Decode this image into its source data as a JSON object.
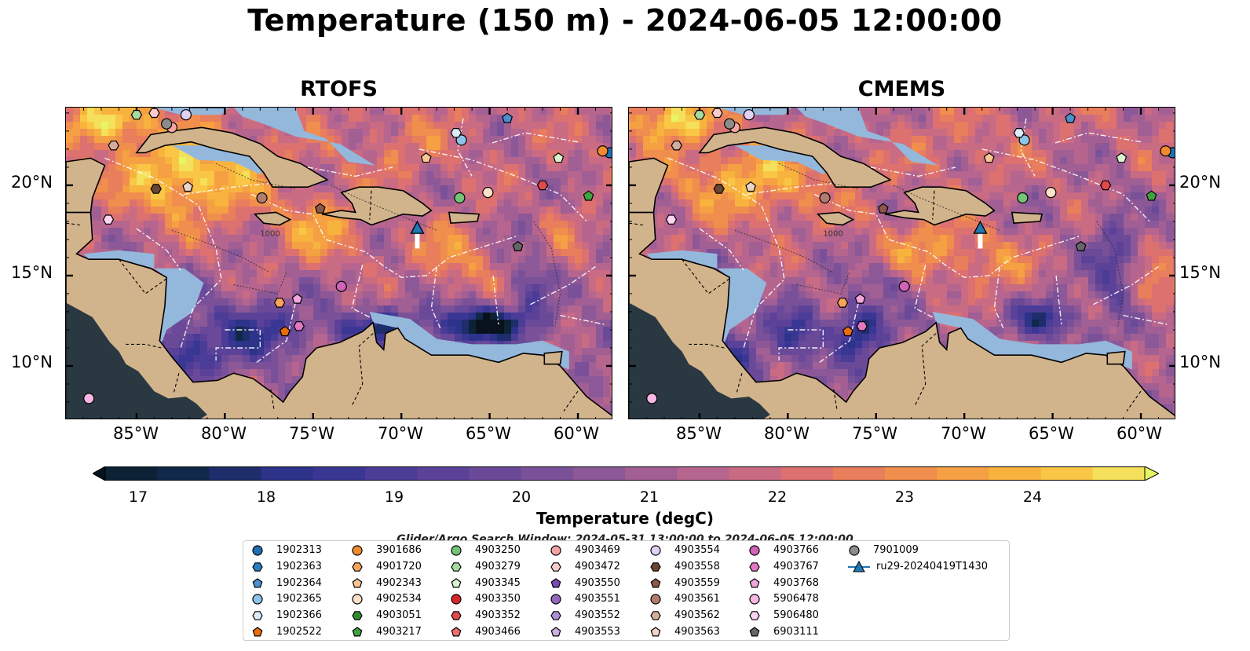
{
  "title": "Temperature (150 m) - 2024-06-05 12:00:00",
  "panels": [
    {
      "title": "RTOFS"
    },
    {
      "title": "CMEMS"
    }
  ],
  "axes": {
    "lon_ticks": [
      "85°W",
      "80°W",
      "75°W",
      "70°W",
      "65°W",
      "60°W"
    ],
    "lat_ticks": [
      "20°N",
      "15°N",
      "10°N"
    ],
    "lon_range": [
      -89.0,
      -58.0
    ],
    "lat_range": [
      7.0,
      24.3
    ]
  },
  "colorbar": {
    "title": "Temperature (degC)",
    "range": [
      16.5,
      24.5
    ],
    "ticks": [
      "17",
      "18",
      "19",
      "20",
      "21",
      "22",
      "23",
      "24"
    ],
    "colors": [
      "#0d2235",
      "#10284a",
      "#1e2d6b",
      "#2c3389",
      "#3a3794",
      "#4a3c97",
      "#5b4298",
      "#6a4999",
      "#7a5199",
      "#8c5897",
      "#a15f94",
      "#b6658e",
      "#c96b83",
      "#dc7170",
      "#e87e5b",
      "#f08e4d",
      "#f5a043",
      "#f8b33e",
      "#f9c745",
      "#f4e05a"
    ],
    "extend_min_color": "#07121d",
    "extend_max_color": "#e7f65f"
  },
  "search_window": "Glider/Argo Search Window: 2024-05-31 13:00:00 to 2024-06-05 12:00:00",
  "legend": {
    "entries": [
      {
        "label": "1902313",
        "marker": "circle",
        "color": "#1f6fb4"
      },
      {
        "label": "1902363",
        "marker": "hexagon",
        "color": "#2b7ec0"
      },
      {
        "label": "1902364",
        "marker": "pentagon",
        "color": "#4a90cf"
      },
      {
        "label": "1902365",
        "marker": "circle",
        "color": "#8ec3ea"
      },
      {
        "label": "1902366",
        "marker": "hexagon",
        "color": "#dcebf8"
      },
      {
        "label": "1902522",
        "marker": "pentagon",
        "color": "#e86d0c"
      },
      {
        "label": "3901686",
        "marker": "circle",
        "color": "#f28b2d"
      },
      {
        "label": "4901720",
        "marker": "hexagon",
        "color": "#f7a45c"
      },
      {
        "label": "4902343",
        "marker": "pentagon",
        "color": "#fbc697"
      },
      {
        "label": "4902534",
        "marker": "circle",
        "color": "#fde0c9"
      },
      {
        "label": "4903051",
        "marker": "hexagon",
        "color": "#2e8b2e"
      },
      {
        "label": "4903217",
        "marker": "pentagon",
        "color": "#3fa23f"
      },
      {
        "label": "4903250",
        "marker": "circle",
        "color": "#74c476"
      },
      {
        "label": "4903279",
        "marker": "hexagon",
        "color": "#a6dba0"
      },
      {
        "label": "4903345",
        "marker": "pentagon",
        "color": "#d9f2d0"
      },
      {
        "label": "4903350",
        "marker": "circle",
        "color": "#d62728"
      },
      {
        "label": "4903352",
        "marker": "hexagon",
        "color": "#e04a4a"
      },
      {
        "label": "4903466",
        "marker": "pentagon",
        "color": "#ee6e6e"
      },
      {
        "label": "4903469",
        "marker": "circle",
        "color": "#f4a3a3"
      },
      {
        "label": "4903472",
        "marker": "hexagon",
        "color": "#f9cccc"
      },
      {
        "label": "4903550",
        "marker": "pentagon",
        "color": "#7b4bb3"
      },
      {
        "label": "4903551",
        "marker": "circle",
        "color": "#9467bd"
      },
      {
        "label": "4903552",
        "marker": "hexagon",
        "color": "#b08fd6"
      },
      {
        "label": "4903553",
        "marker": "pentagon",
        "color": "#c8b0e6"
      },
      {
        "label": "4903554",
        "marker": "circle",
        "color": "#e0d0f2"
      },
      {
        "label": "4903558",
        "marker": "hexagon",
        "color": "#6b4532"
      },
      {
        "label": "4903559",
        "marker": "pentagon",
        "color": "#8c564b"
      },
      {
        "label": "4903561",
        "marker": "circle",
        "color": "#b07c70"
      },
      {
        "label": "4903562",
        "marker": "hexagon",
        "color": "#d4ad9f"
      },
      {
        "label": "4903563",
        "marker": "pentagon",
        "color": "#ecd4c9"
      },
      {
        "label": "4903766",
        "marker": "circle",
        "color": "#d062b8"
      },
      {
        "label": "4903767",
        "marker": "hexagon",
        "color": "#e377c2"
      },
      {
        "label": "4903768",
        "marker": "pentagon",
        "color": "#f2a6de"
      },
      {
        "label": "5906478",
        "marker": "circle",
        "color": "#f7b6e4"
      },
      {
        "label": "5906480",
        "marker": "hexagon",
        "color": "#fbd6f1"
      },
      {
        "label": "6903111",
        "marker": "pentagon",
        "color": "#666666"
      },
      {
        "label": "7901009",
        "marker": "circle",
        "color": "#8c8c8c"
      },
      {
        "label": "ru29-20240419T1430",
        "marker": "triangle-line",
        "color": "#1f77b4"
      }
    ]
  },
  "map_features": {
    "land_color": "#d2b48c",
    "shelf_color": "#94b8dc",
    "eez_lines": "white dash-dot",
    "isobath_label": "1000"
  },
  "floats": [
    {
      "id": "1902313",
      "lon": -58.2,
      "lat": 21.8
    },
    {
      "id": "1902364",
      "lon": -64.0,
      "lat": 23.7
    },
    {
      "id": "1902365",
      "lon": -66.6,
      "lat": 22.5
    },
    {
      "id": "1902366",
      "lon": -66.9,
      "lat": 22.9
    },
    {
      "id": "1902522",
      "lon": -76.6,
      "lat": 11.9
    },
    {
      "id": "3901686",
      "lon": -58.6,
      "lat": 21.9
    },
    {
      "id": "4901720",
      "lon": -76.9,
      "lat": 13.5
    },
    {
      "id": "4902343",
      "lon": -68.6,
      "lat": 21.5
    },
    {
      "id": "4902534",
      "lon": -65.1,
      "lat": 19.6
    },
    {
      "id": "4903217",
      "lon": -59.4,
      "lat": 19.4
    },
    {
      "id": "4903250",
      "lon": -66.7,
      "lat": 19.3
    },
    {
      "id": "4903279",
      "lon": -85.0,
      "lat": 23.9
    },
    {
      "id": "4903345",
      "lon": -61.1,
      "lat": 21.5
    },
    {
      "id": "4903352",
      "lon": -62.0,
      "lat": 20.0
    },
    {
      "id": "4903469",
      "lon": -83.0,
      "lat": 23.2
    },
    {
      "id": "4903472",
      "lon": -84.0,
      "lat": 24.0
    },
    {
      "id": "4903554",
      "lon": -82.2,
      "lat": 23.9
    },
    {
      "id": "4903558",
      "lon": -83.9,
      "lat": 19.8
    },
    {
      "id": "4903559",
      "lon": -74.6,
      "lat": 18.7
    },
    {
      "id": "4903561",
      "lon": -77.9,
      "lat": 19.3
    },
    {
      "id": "4903562",
      "lon": -86.3,
      "lat": 22.2
    },
    {
      "id": "4903563",
      "lon": -82.1,
      "lat": 19.9
    },
    {
      "id": "4903766",
      "lon": -73.4,
      "lat": 14.4
    },
    {
      "id": "4903767",
      "lon": -75.8,
      "lat": 12.2
    },
    {
      "id": "4903768",
      "lon": -75.9,
      "lat": 13.7
    },
    {
      "id": "5906478",
      "lon": -87.7,
      "lat": 8.2
    },
    {
      "id": "5906480",
      "lon": -86.6,
      "lat": 18.1
    },
    {
      "id": "6903111",
      "lon": -63.4,
      "lat": 16.6
    },
    {
      "id": "7901009",
      "lon": -83.3,
      "lat": 23.4
    }
  ],
  "glider": {
    "id": "ru29-20240419T1430",
    "lon": -69.1,
    "lat": 17.6,
    "track_end_lat": 16.5
  }
}
